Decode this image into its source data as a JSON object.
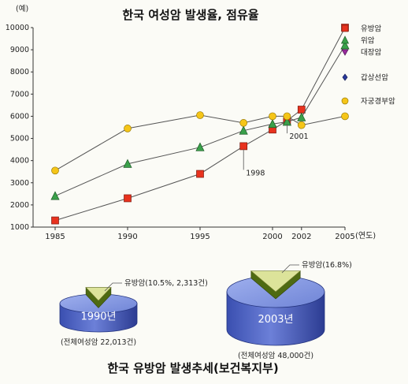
{
  "chart_data": [
    {
      "type": "line",
      "title": "한국 여성암 발생율, 점유율",
      "yunit": "(예)",
      "xunit": "(연도)",
      "ylim": [
        1000,
        10000
      ],
      "yticks": [
        1000,
        2000,
        3000,
        4000,
        5000,
        6000,
        7000,
        8000,
        9000,
        10000
      ],
      "xticks": [
        1985,
        1990,
        1995,
        2000,
        2002,
        2005
      ],
      "grid": false,
      "legend_position": "right",
      "series": [
        {
          "name": "유방암",
          "marker": "square",
          "color": "#e8321e",
          "points": [
            [
              1985,
              1300
            ],
            [
              1990,
              2300
            ],
            [
              1995,
              3400
            ],
            [
              1998,
              4650
            ],
            [
              2000,
              5400
            ],
            [
              2001,
              5800
            ],
            [
              2002,
              6300
            ],
            [
              2005,
              10000
            ]
          ]
        },
        {
          "name": "위암",
          "marker": "triangle",
          "color": "#3aa04a",
          "points": [
            [
              1985,
              2400
            ],
            [
              1990,
              3850
            ],
            [
              1995,
              4600
            ],
            [
              1998,
              5350
            ],
            [
              2000,
              5650
            ],
            [
              2001,
              5750
            ],
            [
              2002,
              5950
            ],
            [
              2005,
              9200
            ]
          ]
        },
        {
          "name": "대장암",
          "marker": "triangle-down",
          "color": "#9a2a9e",
          "points": []
        },
        {
          "name": "갑상선암",
          "marker": "diamond",
          "color": "#2a3a9e",
          "points": []
        },
        {
          "name": "자궁경부암",
          "marker": "circle",
          "color": "#f5c518",
          "points": [
            [
              1985,
              3550
            ],
            [
              1990,
              5450
            ],
            [
              1995,
              6050
            ],
            [
              1998,
              5700
            ],
            [
              2000,
              6000
            ],
            [
              2001,
              6000
            ],
            [
              2002,
              5600
            ],
            [
              2005,
              6000
            ]
          ]
        }
      ],
      "annotations": [
        {
          "text": "1998",
          "x": 1998
        },
        {
          "text": "2001",
          "x": 2001
        }
      ]
    },
    {
      "type": "pie",
      "title": "한국 유방암 발생추세(보건복지부)",
      "charts": [
        {
          "year_label": "1990년",
          "slice_label": "유방암(10.5%, 2,313건)",
          "slice_percent": 10.5,
          "total_label": "(전체여성암 22,013건)"
        },
        {
          "year_label": "2003년",
          "slice_label": "유방암(16.8%)",
          "slice_percent": 16.8,
          "total_label": "(전체여성암 48,000건)"
        }
      ]
    }
  ]
}
